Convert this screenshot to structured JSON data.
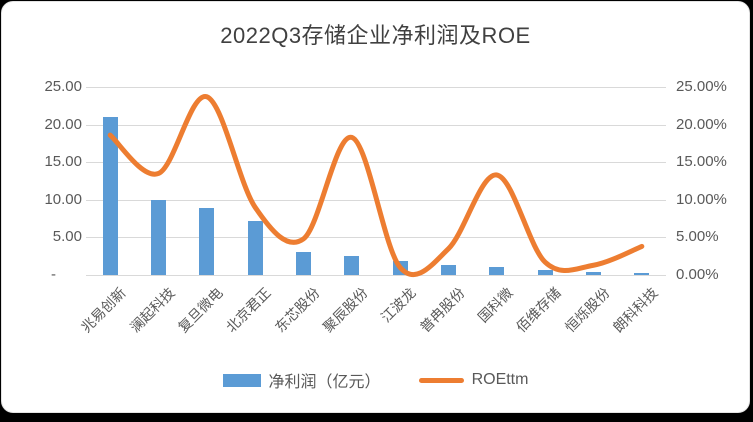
{
  "chart_data": {
    "type": "bar",
    "title": "2022Q3存储企业净利润及ROE",
    "categories": [
      "兆易创新",
      "澜起科技",
      "复旦微电",
      "北京君正",
      "东芯股份",
      "聚辰股份",
      "江波龙",
      "普冉股份",
      "国科微",
      "佰维存储",
      "恒烁股份",
      "朗科科技"
    ],
    "series": [
      {
        "name": "净利润（亿元）",
        "type": "bar",
        "axis": "left",
        "color": "#5b9bd5",
        "values": [
          21.0,
          10.0,
          8.9,
          7.2,
          3.0,
          2.5,
          1.8,
          1.3,
          1.1,
          0.6,
          0.4,
          0.3
        ]
      },
      {
        "name": "ROEttm",
        "type": "line",
        "axis": "right",
        "color": "#ed7d31",
        "values": [
          18.6,
          13.5,
          23.7,
          9.0,
          4.8,
          18.3,
          1.0,
          3.5,
          13.3,
          1.7,
          1.3,
          3.8
        ]
      }
    ],
    "left_axis": {
      "labels": [
        "25.00",
        "20.00",
        "15.00",
        "10.00",
        "5.00",
        "-"
      ],
      "min": 0,
      "max": 25
    },
    "right_axis": {
      "labels": [
        "25.00%",
        "20.00%",
        "15.00%",
        "10.00%",
        "5.00%",
        "0.00%"
      ],
      "min": 0,
      "max": 25
    },
    "grid": true,
    "legend_position": "bottom",
    "colors": {
      "bar": "#5b9bd5",
      "line": "#ed7d31",
      "gridline": "#d9d9d9",
      "axis_text": "#595959",
      "title_text": "#404040"
    }
  }
}
